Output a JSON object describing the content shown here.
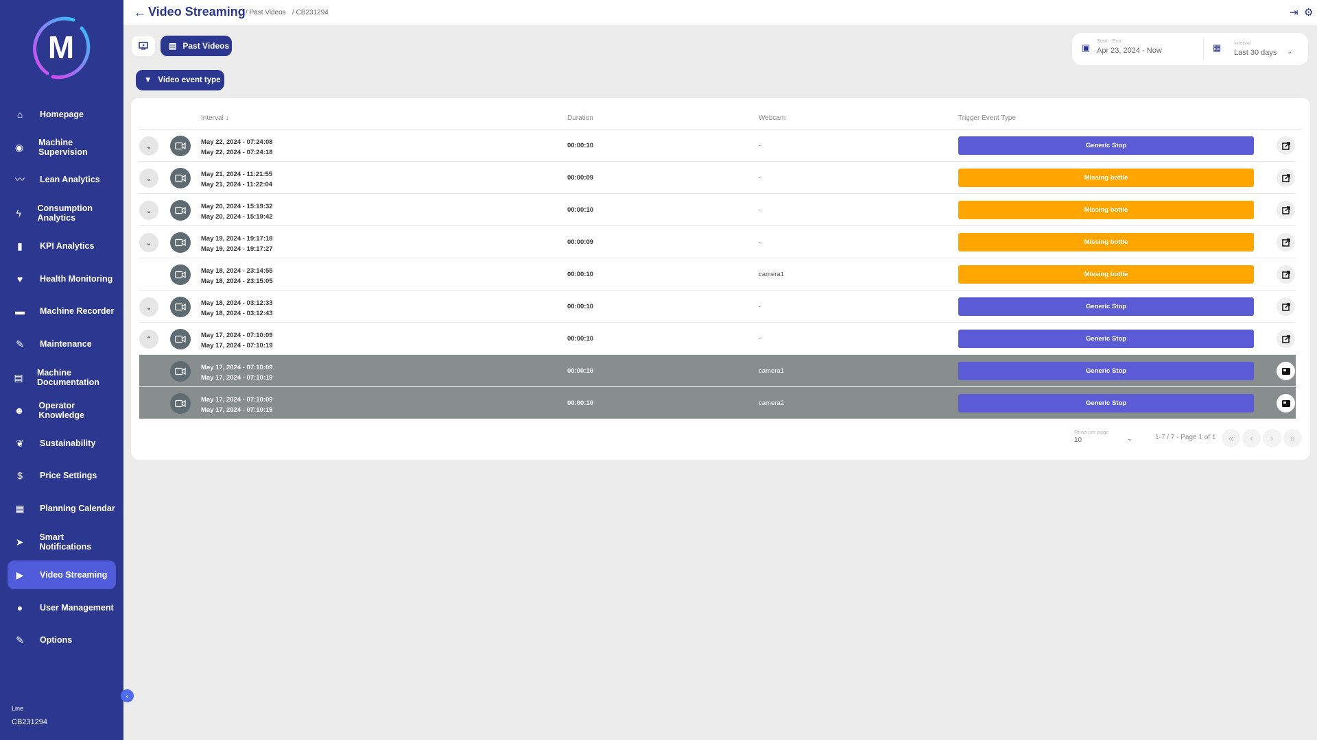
{
  "brand": {
    "logo_letter": "M"
  },
  "sidebar": {
    "items": [
      {
        "label": "Homepage",
        "icon": "home-icon"
      },
      {
        "label": "Machine Supervision",
        "icon": "eye-icon"
      },
      {
        "label": "Lean Analytics",
        "icon": "trend-icon"
      },
      {
        "label": "Consumption Analytics",
        "icon": "bolt-icon"
      },
      {
        "label": "KPI Analytics",
        "icon": "bar-chart-icon"
      },
      {
        "label": "Health Monitoring",
        "icon": "heart-pulse-icon"
      },
      {
        "label": "Machine Recorder",
        "icon": "recorder-icon"
      },
      {
        "label": "Maintenance",
        "icon": "wrench-icon"
      },
      {
        "label": "Machine Documentation",
        "icon": "documents-icon"
      },
      {
        "label": "Operator Knowledge",
        "icon": "operator-icon"
      },
      {
        "label": "Sustainability",
        "icon": "leaf-icon"
      },
      {
        "label": "Price Settings",
        "icon": "dollar-icon"
      },
      {
        "label": "Planning Calendar",
        "icon": "calendar-icon"
      },
      {
        "label": "Smart Notifications",
        "icon": "send-icon"
      },
      {
        "label": "Video Streaming",
        "icon": "play-icon",
        "active": true
      },
      {
        "label": "User Management",
        "icon": "user-icon"
      },
      {
        "label": "Options",
        "icon": "wrench-icon"
      }
    ],
    "line_label": "Line",
    "line_value": "CB231294"
  },
  "header": {
    "title": "Video Streaming",
    "crumb1": "/ Past Videos",
    "crumb2": "/ CB231294"
  },
  "toolbar": {
    "past_videos": "Past Videos",
    "filter": "Video event type"
  },
  "date_range": {
    "label": "Start - End",
    "value": "Apr 23, 2024 - Now"
  },
  "interval": {
    "label": "Interval",
    "value": "Last 30 days"
  },
  "table": {
    "columns": {
      "interval": "Interval",
      "duration": "Duration",
      "webcam": "Webcam",
      "trigger": "Trigger Event Type"
    },
    "rows": [
      {
        "start": "May 22, 2024 - 07:24:08",
        "end": "May 22, 2024 - 07:24:18",
        "duration": "00:00:10",
        "webcam": "-",
        "trigger": "Generic Stop",
        "color": "#5b5bd6",
        "expand": "down"
      },
      {
        "start": "May 21, 2024 - 11:21:55",
        "end": "May 21, 2024 - 11:22:04",
        "duration": "00:00:09",
        "webcam": "-",
        "trigger": "Missing bottle",
        "color": "#ffa500",
        "expand": "down"
      },
      {
        "start": "May 20, 2024 - 15:19:32",
        "end": "May 20, 2024 - 15:19:42",
        "duration": "00:00:10",
        "webcam": "-",
        "trigger": "Missing bottle",
        "color": "#ffa500",
        "expand": "down"
      },
      {
        "start": "May 19, 2024 - 19:17:18",
        "end": "May 19, 2024 - 19:17:27",
        "duration": "00:00:09",
        "webcam": "-",
        "trigger": "Missing bottle",
        "color": "#ffa500",
        "expand": "down"
      },
      {
        "start": "May 18, 2024 - 23:14:55",
        "end": "May 18, 2024 - 23:15:05",
        "duration": "00:00:10",
        "webcam": "camera1",
        "trigger": "Missing bottle",
        "color": "#ffa500",
        "expand": "none"
      },
      {
        "start": "May 18, 2024 - 03:12:33",
        "end": "May 18, 2024 - 03:12:43",
        "duration": "00:00:10",
        "webcam": "-",
        "trigger": "Generic Stop",
        "color": "#5b5bd6",
        "expand": "down"
      },
      {
        "start": "May 17, 2024 - 07:10:09",
        "end": "May 17, 2024 - 07:10:19",
        "duration": "00:00:10",
        "webcam": "-",
        "trigger": "Generic Stop",
        "color": "#5b5bd6",
        "expand": "up"
      },
      {
        "start": "May 17, 2024 - 07:10:09",
        "end": "May 17, 2024 - 07:10:19",
        "duration": "00:00:10",
        "webcam": "camera1",
        "trigger": "Generic Stop",
        "color": "#5b5bd6",
        "expand": "sub"
      },
      {
        "start": "May 17, 2024 - 07:10:09",
        "end": "May 17, 2024 - 07:10:19",
        "duration": "00:00:10",
        "webcam": "camera2",
        "trigger": "Generic Stop",
        "color": "#5b5bd6",
        "expand": "sub"
      }
    ]
  },
  "pagination": {
    "rows_label": "Rows per page",
    "rows_value": "10",
    "summary": "1-7 / 7 - Page 1 of 1"
  }
}
